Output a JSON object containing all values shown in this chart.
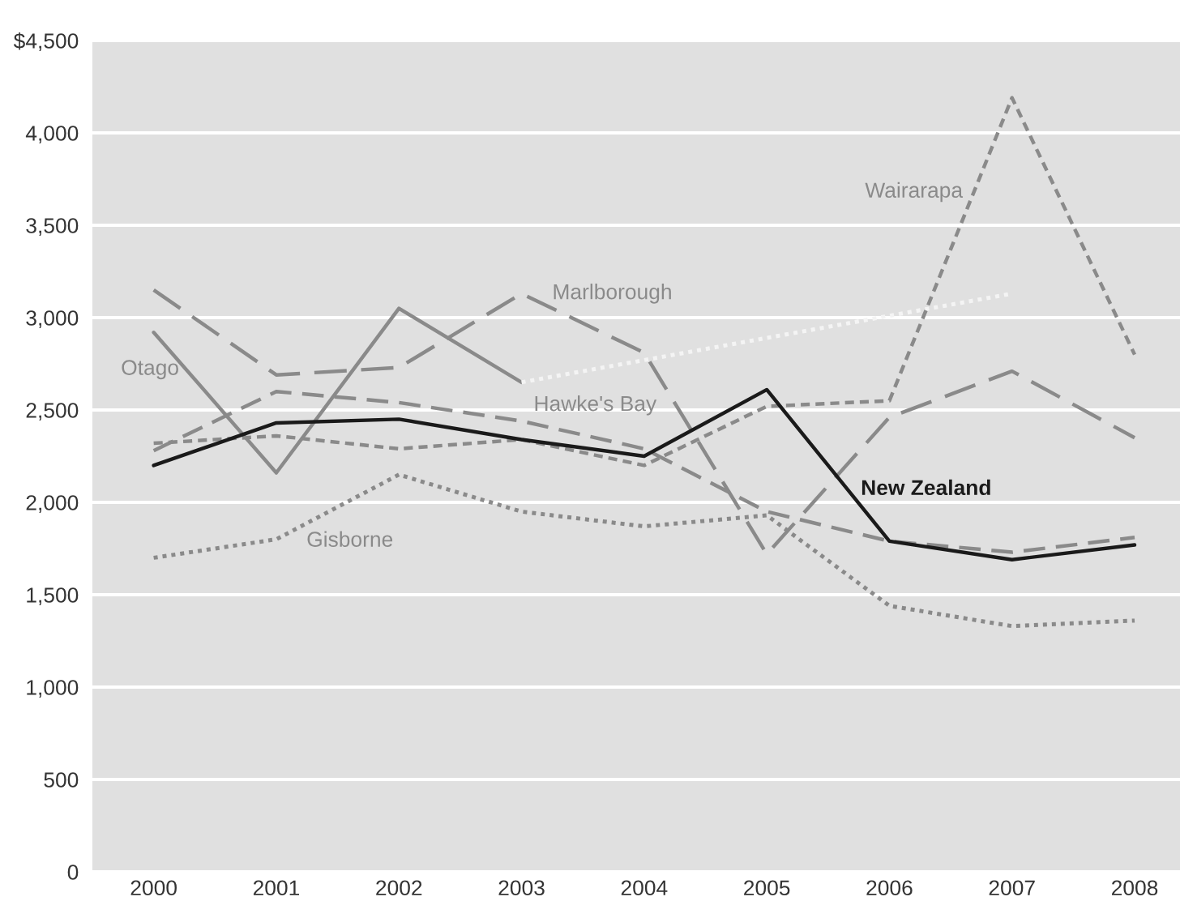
{
  "chart_data": {
    "type": "line",
    "x": [
      2000,
      2001,
      2002,
      2003,
      2004,
      2005,
      2006,
      2007,
      2008
    ],
    "series": [
      {
        "name": "Otago",
        "color": "#8a8a8a",
        "line_style": "solid",
        "values": [
          2920,
          2160,
          3050,
          2650,
          null,
          null,
          null,
          null,
          null
        ]
      },
      {
        "color": "#f4f4f4",
        "line_style": "dotted",
        "x": [
          2003,
          2007
        ],
        "values": [
          2650,
          3130
        ]
      },
      {
        "name": "Marlborough",
        "color": "#8a8a8a",
        "line_style": "dashed",
        "values": [
          3150,
          2690,
          2730,
          3130,
          2810,
          1720,
          2460,
          2710,
          2350
        ]
      },
      {
        "name": "Hawke's Bay",
        "color": "#8a8a8a",
        "line_style": "dashed",
        "values": [
          2280,
          2600,
          2540,
          2440,
          2290,
          1950,
          1790,
          1730,
          1810
        ]
      },
      {
        "name": "Wairarapa",
        "color": "#8a8a8a",
        "line_style": "dashed",
        "values": [
          2320,
          2360,
          2290,
          2340,
          2200,
          2520,
          2550,
          4190,
          2800
        ]
      },
      {
        "name": "New Zealand",
        "color": "#1a1a1a",
        "line_style": "solid",
        "values": [
          2200,
          2430,
          2450,
          2340,
          2250,
          2610,
          1790,
          1690,
          1770
        ]
      },
      {
        "name": "Gisborne",
        "color": "#8a8a8a",
        "line_style": "dotted",
        "values": [
          1700,
          1800,
          2150,
          1950,
          1870,
          1930,
          1440,
          1330,
          1360
        ]
      }
    ],
    "xlim": [
      1999.5,
      2008.37
    ],
    "xticks": [
      2000,
      2001,
      2002,
      2003,
      2004,
      2005,
      2006,
      2007,
      2008
    ],
    "ylim": [
      0,
      4500
    ],
    "yticks": [
      0,
      {
        "value": 500,
        "label": "500"
      },
      {
        "value": 1000,
        "label": "1,000"
      },
      {
        "value": 1500,
        "label": "1,500"
      },
      {
        "value": 2000,
        "label": "2,000"
      },
      {
        "value": 2500,
        "label": "2,500"
      },
      {
        "value": 3000,
        "label": "3,000"
      },
      {
        "value": 3500,
        "label": "3,500"
      },
      {
        "value": 4000,
        "label": "4,000"
      },
      {
        "value": 4500,
        "label": "$4,500"
      }
    ],
    "grid": "y",
    "legend": false,
    "marker": "none"
  }
}
